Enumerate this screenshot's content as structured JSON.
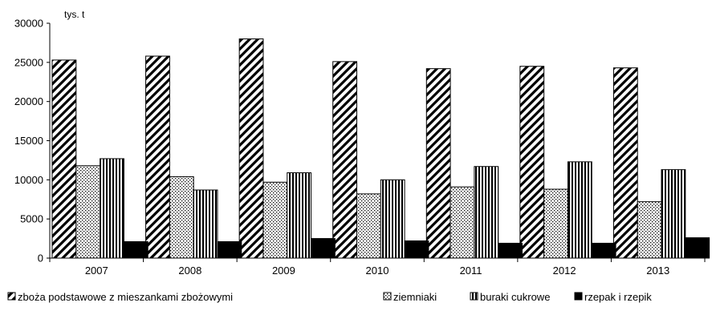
{
  "chart_data": {
    "type": "bar",
    "title": "",
    "xlabel": "",
    "ylabel": "",
    "unit_label": "tys. t",
    "categories": [
      "2007",
      "2008",
      "2009",
      "2010",
      "2011",
      "2012",
      "2013"
    ],
    "ylim": [
      0,
      30000
    ],
    "yticks": [
      "0",
      "5000",
      "10000",
      "15000",
      "20000",
      "25000",
      "30000"
    ],
    "grid": false,
    "legend_position": "bottom",
    "series": [
      {
        "name": "zboża podstawowe z mieszankami zbożowymi",
        "pattern": "diagonal-hatch",
        "values": [
          25300,
          25800,
          28000,
          25100,
          24200,
          24500,
          24300
        ]
      },
      {
        "name": "ziemniaki",
        "pattern": "dotted",
        "values": [
          11800,
          10400,
          9700,
          8200,
          9100,
          8800,
          7200
        ]
      },
      {
        "name": "buraki cukrowe",
        "pattern": "vertical-stripes",
        "values": [
          12700,
          8700,
          10900,
          10000,
          11700,
          12300,
          11300
        ]
      },
      {
        "name": "rzepak i rzepik",
        "pattern": "solid",
        "color": "#000000",
        "values": [
          2100,
          2100,
          2500,
          2200,
          1900,
          1900,
          2600
        ]
      }
    ]
  }
}
